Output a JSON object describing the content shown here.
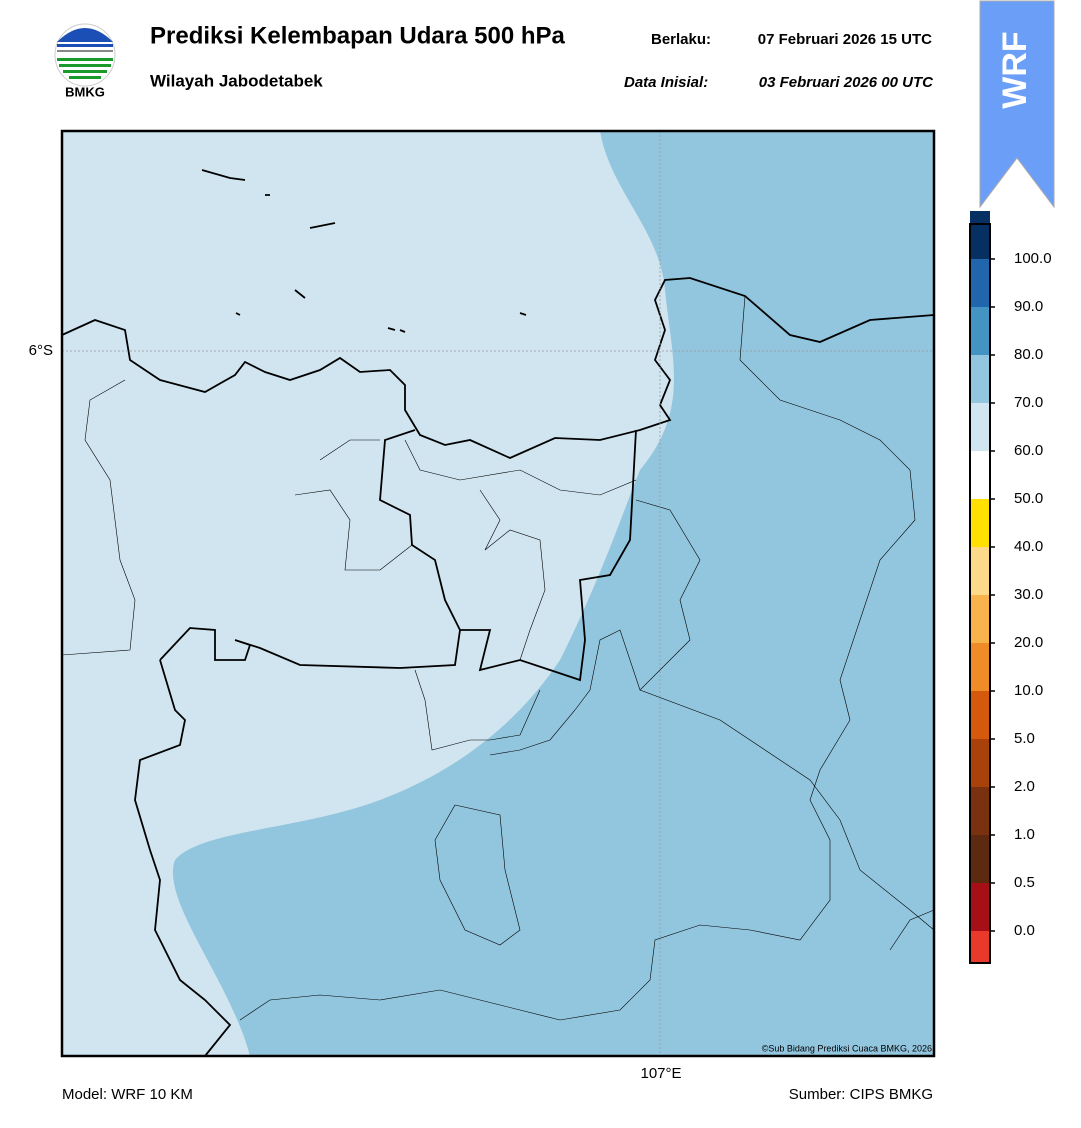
{
  "header": {
    "logo_text": "BMKG",
    "title": "Prediksi Kelembapan Udara 500 hPa",
    "subtitle": "Wilayah Jabodetabek",
    "valid_label": "Berlaku:",
    "valid_time": "07 Februari 2026 15 UTC",
    "init_label": "Data Inisial:",
    "init_time": "03 Februari 2026 00 UTC"
  },
  "badge": "WRF",
  "map": {
    "lat_label": "6°S",
    "lon_label": "107°E",
    "credit": "©Sub Bidang Prediksi Cuaca BMKG, 2026",
    "fill_low": "#d1e5f0",
    "fill_high": "#92c5de"
  },
  "colorbar": {
    "labels": [
      "0.0",
      "0.5",
      "1.0",
      "2.0",
      "5.0",
      "10.0",
      "20.0",
      "30.0",
      "40.0",
      "50.0",
      "60.0",
      "70.0",
      "80.0",
      "90.0",
      "100.0"
    ],
    "colors": [
      "#e8392b",
      "#a50f15",
      "#5c2a10",
      "#7a3110",
      "#a9420a",
      "#d5590c",
      "#f08c27",
      "#f9b34c",
      "#fdd98a",
      "#ffe000",
      "#ffffff",
      "#d1e5f0",
      "#92c5de",
      "#4393c3",
      "#2166ac",
      "#053061",
      "#2d004b"
    ]
  },
  "footer": {
    "model": "Model: WRF 10 KM",
    "source": "Sumber: CIPS BMKG"
  }
}
